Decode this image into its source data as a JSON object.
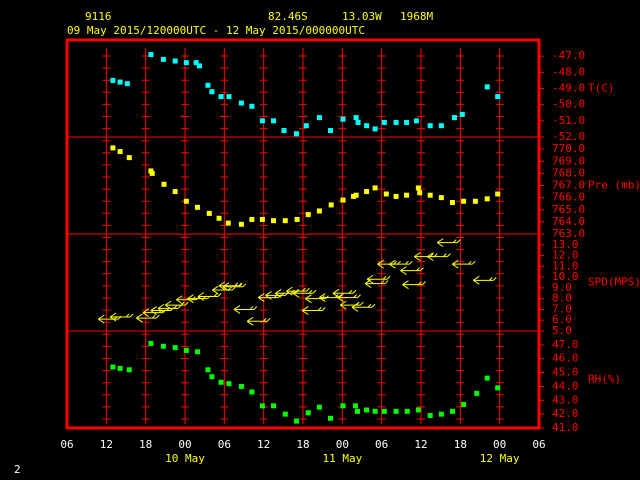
{
  "header": {
    "station": "9116",
    "lat": "82.46S",
    "lon": "13.03W",
    "elev": "1968M",
    "period": "09 May 2015/120000UTC - 12 May 2015/000000UTC",
    "page": "2"
  },
  "x_axis": {
    "xlim": [
      0,
      72
    ],
    "xticks": [
      {
        "value": 0,
        "label": "06"
      },
      {
        "value": 6,
        "label": "12"
      },
      {
        "value": 12,
        "label": "18"
      },
      {
        "value": 18,
        "label": "00"
      },
      {
        "value": 24,
        "label": "06"
      },
      {
        "value": 30,
        "label": "12"
      },
      {
        "value": 36,
        "label": "18"
      },
      {
        "value": 42,
        "label": "00"
      },
      {
        "value": 48,
        "label": "06"
      },
      {
        "value": 54,
        "label": "12"
      },
      {
        "value": 60,
        "label": "18"
      },
      {
        "value": 66,
        "label": "00"
      },
      {
        "value": 72,
        "label": "06"
      }
    ],
    "date_labels": [
      {
        "value": 18,
        "label": "10 May"
      },
      {
        "value": 42,
        "label": "11 May"
      },
      {
        "value": 66,
        "label": "12 May"
      }
    ]
  },
  "chart_data": [
    {
      "type": "scatter",
      "marker": "square",
      "ylabel": "T(C)",
      "color": "#00ffff",
      "x": [
        7.0,
        8.1,
        9.2,
        12.8,
        14.7,
        16.5,
        18.2,
        19.7,
        20.2,
        21.5,
        22.1,
        23.5,
        24.7,
        26.6,
        28.2,
        29.8,
        31.5,
        33.1,
        35.0,
        36.5,
        38.5,
        40.2,
        42.1,
        44.1,
        44.4,
        45.7,
        47.0,
        48.4,
        50.2,
        51.8,
        53.3,
        55.4,
        57.1,
        59.1,
        60.3,
        64.1,
        65.7
      ],
      "values": [
        -48.5,
        -48.6,
        -48.7,
        -46.9,
        -47.2,
        -47.3,
        -47.4,
        -47.4,
        -47.6,
        -48.8,
        -49.2,
        -49.5,
        -49.5,
        -49.9,
        -50.1,
        -51.0,
        -51.0,
        -51.6,
        -51.8,
        -51.3,
        -50.8,
        -51.6,
        -50.9,
        -50.8,
        -51.1,
        -51.3,
        -51.5,
        -51.1,
        -51.1,
        -51.1,
        -51.0,
        -51.3,
        -51.3,
        -50.8,
        -50.6,
        -48.9,
        -49.5
      ],
      "ylim": [
        -52,
        -46
      ],
      "yticks": [
        {
          "value": -47,
          "label": "-47.0"
        },
        {
          "value": -48,
          "label": "-48.0"
        },
        {
          "value": -49,
          "label": "-49.0"
        },
        {
          "value": -50,
          "label": "-50.0"
        },
        {
          "value": -51,
          "label": "-51.0"
        },
        {
          "value": -52,
          "label": "-52.0"
        }
      ]
    },
    {
      "type": "scatter",
      "marker": "square",
      "ylabel": "Pre (mb)",
      "color": "#ffff00",
      "x": [
        7.0,
        8.1,
        9.5,
        12.8,
        13.0,
        14.8,
        16.5,
        18.2,
        19.9,
        21.7,
        23.2,
        24.6,
        26.6,
        28.2,
        29.8,
        31.5,
        33.3,
        35.1,
        36.8,
        38.5,
        40.3,
        42.1,
        43.7,
        44.1,
        45.7,
        47.0,
        48.7,
        50.2,
        51.8,
        53.6,
        53.8,
        55.4,
        57.1,
        58.8,
        60.5,
        62.3,
        64.1,
        65.7
      ],
      "values": [
        770.1,
        769.8,
        769.3,
        768.2,
        768.0,
        767.1,
        766.5,
        765.7,
        765.2,
        764.7,
        764.3,
        763.9,
        763.8,
        764.2,
        764.2,
        764.1,
        764.1,
        764.2,
        764.6,
        764.9,
        765.4,
        765.8,
        766.1,
        766.2,
        766.5,
        766.8,
        766.3,
        766.1,
        766.2,
        766.8,
        766.4,
        766.2,
        766.0,
        765.6,
        765.7,
        765.7,
        765.9,
        766.3
      ],
      "ylim": [
        763,
        771
      ],
      "yticks": [
        {
          "value": 770,
          "label": "770.0"
        },
        {
          "value": 769,
          "label": "769.0"
        },
        {
          "value": 768,
          "label": "768.0"
        },
        {
          "value": 767,
          "label": "767.0"
        },
        {
          "value": 766,
          "label": "766.0"
        },
        {
          "value": 765,
          "label": "765.0"
        },
        {
          "value": 764,
          "label": "764.0"
        },
        {
          "value": 763,
          "label": "763.0"
        }
      ]
    },
    {
      "type": "scatter",
      "marker": "arrow",
      "ylabel": "SPD(MPS)",
      "color": "#ffff00",
      "x": [
        6.3,
        8.1,
        12.1,
        13.1,
        14.3,
        15.4,
        16.5,
        18.2,
        19.9,
        21.5,
        23.7,
        24.7,
        25.3,
        27.0,
        29.0,
        30.7,
        31.8,
        33.3,
        35.0,
        36.0,
        37.9,
        37.4,
        40.0,
        42.1,
        42.8,
        43.2,
        45.0,
        47.0,
        47.3,
        48.9,
        50.7,
        52.4,
        52.7,
        54.5,
        56.5,
        58.0,
        60.3,
        63.5
      ],
      "values": [
        6.1,
        6.3,
        6.2,
        6.7,
        6.9,
        7.1,
        7.4,
        7.9,
        8.0,
        8.2,
        8.8,
        9.2,
        9.1,
        7.0,
        5.9,
        8.1,
        8.3,
        8.5,
        8.7,
        8.5,
        8.0,
        6.9,
        8.1,
        8.5,
        8.1,
        7.4,
        7.2,
        9.4,
        9.8,
        11.2,
        11.2,
        10.6,
        9.3,
        11.9,
        11.9,
        13.2,
        11.2,
        9.7
      ],
      "ylim": [
        5,
        14
      ],
      "yticks": [
        {
          "value": 13,
          "label": "13.0"
        },
        {
          "value": 12,
          "label": "12.0"
        },
        {
          "value": 11,
          "label": "11.0"
        },
        {
          "value": 10,
          "label": "10.0"
        },
        {
          "value": 9,
          "label": "9.0"
        },
        {
          "value": 8,
          "label": "8.0"
        },
        {
          "value": 7,
          "label": "7.0"
        },
        {
          "value": 6,
          "label": "6.0"
        },
        {
          "value": 5,
          "label": "5.0"
        }
      ]
    },
    {
      "type": "scatter",
      "marker": "square",
      "ylabel": "RH(%)",
      "color": "#00ff00",
      "x": [
        7.0,
        8.1,
        9.5,
        12.8,
        14.7,
        16.5,
        18.2,
        19.9,
        21.5,
        22.1,
        23.5,
        24.7,
        26.6,
        28.2,
        29.8,
        31.5,
        33.3,
        35.0,
        36.8,
        38.5,
        40.2,
        42.1,
        44.0,
        44.3,
        45.7,
        47.0,
        48.4,
        50.2,
        51.9,
        53.6,
        55.4,
        57.1,
        58.8,
        60.5,
        62.5,
        64.1,
        65.7
      ],
      "values": [
        45.4,
        45.3,
        45.2,
        47.1,
        46.9,
        46.8,
        46.6,
        46.5,
        45.2,
        44.7,
        44.3,
        44.2,
        44.0,
        43.6,
        42.6,
        42.6,
        42.0,
        41.5,
        42.1,
        42.5,
        41.7,
        42.6,
        42.6,
        42.2,
        42.3,
        42.2,
        42.2,
        42.2,
        42.2,
        42.3,
        41.9,
        42.0,
        42.2,
        42.7,
        43.5,
        44.6,
        43.9
      ],
      "ylim": [
        41,
        48
      ],
      "yticks": [
        {
          "value": 47,
          "label": "47.0"
        },
        {
          "value": 46,
          "label": "46.0"
        },
        {
          "value": 45,
          "label": "45.0"
        },
        {
          "value": 44,
          "label": "44.0"
        },
        {
          "value": 43,
          "label": "43.0"
        },
        {
          "value": 42,
          "label": "42.0"
        },
        {
          "value": 41,
          "label": "41.0"
        }
      ]
    }
  ]
}
